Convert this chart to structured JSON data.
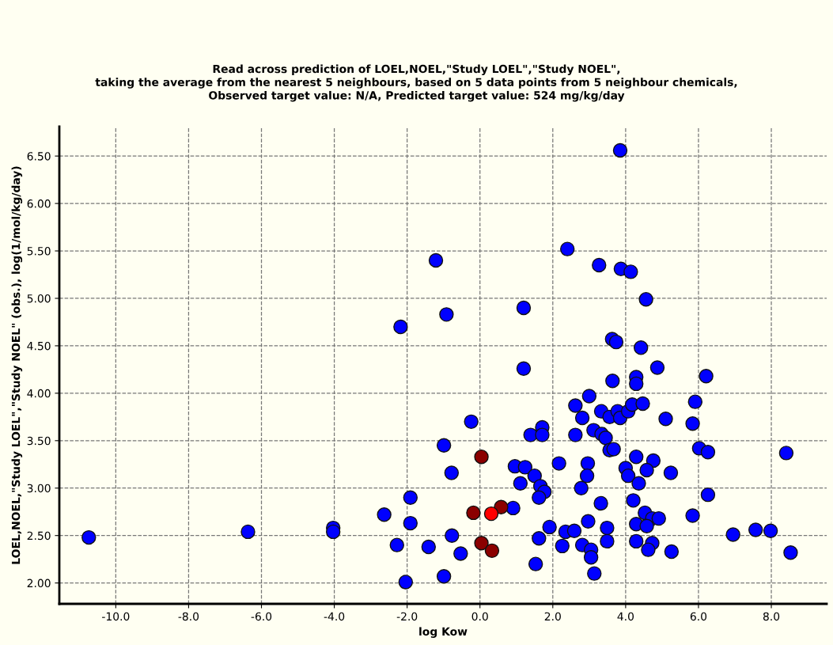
{
  "chart_data": {
    "type": "scatter",
    "title": "Read across prediction of LOEL,NOEL,\"Study LOEL\",\"Study NOEL\",\ntaking the average from the nearest 5 neighbours, based on 5 data points from 5 neighbour chemicals,\nObserved target value: N/A, Predicted target value: 524 mg/kg/day",
    "xlabel": "log Kow",
    "ylabel": "LOEL,NOEL,\"Study LOEL\",\"Study NOEL\" (obs.), log(1/mol/kg/day)",
    "series": [
      {
        "x": [
          -10.74,
          -6.37,
          -4.03,
          -4.03,
          -2.63,
          -1.91,
          -1.91,
          -2.28,
          -2.04,
          -1.41,
          -0.99,
          -0.77,
          -0.53,
          -0.99,
          -0.78,
          -0.24,
          0.91,
          1.11,
          0.96,
          1.24,
          1.2,
          1.39,
          1.71,
          1.71,
          1.5,
          1.66,
          1.77,
          1.62,
          1.62,
          1.53,
          1.91,
          2.17,
          2.26,
          2.35,
          2.59,
          2.62,
          2.62,
          2.81,
          3.0,
          2.78,
          2.96,
          2.94,
          2.97,
          2.81,
          3.05,
          3.05,
          3.14,
          3.32,
          3.49,
          3.49,
          3.12,
          3.34,
          3.45,
          3.56,
          3.67,
          3.33,
          3.56,
          3.78,
          3.85,
          4.07,
          4.18,
          4.47,
          3.64,
          4.29,
          4.29,
          4.87,
          5.1,
          4.29,
          4.76,
          4.58,
          4.0,
          4.07,
          4.36,
          5.24,
          4.21,
          4.53,
          4.73,
          4.91,
          4.29,
          4.58,
          4.29,
          4.73,
          4.62,
          5.26,
          5.91,
          5.84,
          6.21,
          6.02,
          6.26,
          6.26,
          5.84,
          6.95,
          3.85,
          -1.21,
          -2.18,
          -0.92,
          1.2,
          2.4,
          3.27,
          3.87,
          4.14,
          4.56,
          3.63,
          3.74,
          4.42,
          7.57,
          7.98,
          8.41,
          8.53,
          0.04,
          -0.18,
          0.58,
          0.04,
          0.33,
          0.31
        ],
        "values": [
          2.48,
          2.54,
          2.58,
          2.54,
          2.72,
          2.9,
          2.63,
          2.4,
          2.01,
          2.38,
          2.07,
          2.5,
          2.31,
          3.45,
          3.16,
          3.7,
          2.79,
          3.05,
          3.23,
          3.22,
          4.26,
          3.56,
          3.64,
          3.56,
          3.13,
          3.02,
          2.96,
          2.9,
          2.47,
          2.2,
          2.59,
          3.26,
          2.39,
          2.54,
          2.55,
          3.87,
          3.56,
          3.74,
          3.97,
          3.0,
          3.26,
          3.13,
          2.65,
          2.4,
          2.35,
          2.27,
          2.1,
          2.84,
          2.58,
          2.44,
          3.61,
          3.57,
          3.53,
          3.4,
          3.41,
          3.81,
          3.75,
          3.81,
          3.74,
          3.81,
          3.88,
          3.89,
          4.13,
          4.17,
          4.1,
          4.27,
          3.73,
          3.33,
          3.29,
          3.19,
          3.21,
          3.13,
          3.05,
          3.16,
          2.87,
          2.74,
          2.68,
          2.68,
          2.62,
          2.6,
          2.44,
          2.42,
          2.35,
          2.33,
          3.91,
          3.68,
          4.18,
          3.42,
          3.38,
          2.93,
          2.71,
          2.51,
          6.56,
          5.4,
          4.7,
          4.83,
          4.9,
          5.52,
          5.35,
          5.31,
          5.28,
          4.99,
          4.57,
          4.54,
          4.48,
          2.56,
          2.55,
          3.37,
          2.32,
          3.33,
          2.74,
          2.8,
          2.42,
          2.34,
          2.73
        ],
        "colors": [
          "#0000ff",
          "#0000ff",
          "#0000ff",
          "#0000ff",
          "#0000ff",
          "#0000ff",
          "#0000ff",
          "#0000ff",
          "#0000ff",
          "#0000ff",
          "#0000ff",
          "#0000ff",
          "#0000ff",
          "#0000ff",
          "#0000ff",
          "#0000ff",
          "#0000ff",
          "#0000ff",
          "#0000ff",
          "#0000ff",
          "#0000ff",
          "#0000ff",
          "#0000ff",
          "#0000ff",
          "#0000ff",
          "#0000ff",
          "#0000ff",
          "#0000ff",
          "#0000ff",
          "#0000ff",
          "#0000ff",
          "#0000ff",
          "#0000ff",
          "#0000ff",
          "#0000ff",
          "#0000ff",
          "#0000ff",
          "#0000ff",
          "#0000ff",
          "#0000ff",
          "#0000ff",
          "#0000ff",
          "#0000ff",
          "#0000ff",
          "#0000ff",
          "#0000ff",
          "#0000ff",
          "#0000ff",
          "#0000ff",
          "#0000ff",
          "#0000ff",
          "#0000ff",
          "#0000ff",
          "#0000ff",
          "#0000ff",
          "#0000ff",
          "#0000ff",
          "#0000ff",
          "#0000ff",
          "#0000ff",
          "#0000ff",
          "#0000ff",
          "#0000ff",
          "#0000ff",
          "#0000ff",
          "#0000ff",
          "#0000ff",
          "#0000ff",
          "#0000ff",
          "#0000ff",
          "#0000ff",
          "#0000ff",
          "#0000ff",
          "#0000ff",
          "#0000ff",
          "#0000ff",
          "#0000ff",
          "#0000ff",
          "#0000ff",
          "#0000ff",
          "#0000ff",
          "#0000ff",
          "#0000ff",
          "#0000ff",
          "#0000ff",
          "#0000ff",
          "#0000ff",
          "#0000ff",
          "#0000ff",
          "#0000ff",
          "#0000ff",
          "#0000ff",
          "#0000ff",
          "#0000ff",
          "#0000ff",
          "#0000ff",
          "#0000ff",
          "#0000ff",
          "#0000ff",
          "#0000ff",
          "#0000ff",
          "#0000ff",
          "#0000ff",
          "#0000ff",
          "#0000ff",
          "#0000ff",
          "#0000ff",
          "#0000ff",
          "#0000ff",
          "#8b0000",
          "#8b0000",
          "#8b0000",
          "#8b0000",
          "#8b0000",
          "#ff0000"
        ]
      }
    ],
    "marker": "circle",
    "xlim": [
      -11.55,
      9.52
    ],
    "ylim": [
      1.78,
      6.81
    ],
    "xticks": [
      {
        "value": -10,
        "label": "-10.0"
      },
      {
        "value": -8,
        "label": "-8.0"
      },
      {
        "value": -6,
        "label": "-6.0"
      },
      {
        "value": -4,
        "label": "-4.0"
      },
      {
        "value": -2,
        "label": "-2.0"
      },
      {
        "value": 0,
        "label": "0.0"
      },
      {
        "value": 2,
        "label": "2.0"
      },
      {
        "value": 4,
        "label": "4.0"
      },
      {
        "value": 6,
        "label": "6.0"
      },
      {
        "value": 8,
        "label": "8.0"
      }
    ],
    "yticks": [
      {
        "value": 2,
        "label": "2.00"
      },
      {
        "value": 2.5,
        "label": "2.50"
      },
      {
        "value": 3,
        "label": "3.00"
      },
      {
        "value": 3.5,
        "label": "3.50"
      },
      {
        "value": 4,
        "label": "4.00"
      },
      {
        "value": 4.5,
        "label": "4.50"
      },
      {
        "value": 5,
        "label": "5.00"
      },
      {
        "value": 5.5,
        "label": "5.50"
      },
      {
        "value": 6,
        "label": "6.00"
      },
      {
        "value": 6.5,
        "label": "6.50"
      }
    ],
    "grid": true,
    "line_style": "dashed"
  }
}
